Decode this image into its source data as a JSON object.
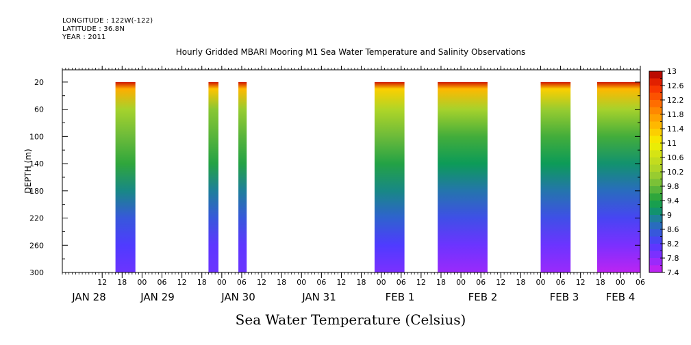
{
  "header": {
    "longitude": "LONGITUDE : 122W(-122)",
    "latitude": "LATITUDE : 36.8N",
    "year": "YEAR : 2011"
  },
  "chart_data": {
    "type": "heatmap",
    "title": "Hourly Gridded MBARI Mooring M1 Sea Water Temperature and Salinity Observations",
    "xlabel_bottom": "Sea Water Temperature (Celsius)",
    "ylabel": "DEPTH (m)",
    "y_axis": {
      "range": [
        300,
        2
      ],
      "reversed": true,
      "tick_labels": [
        "20",
        "60",
        "100",
        "140",
        "180",
        "220",
        "260",
        "300"
      ]
    },
    "x_axis": {
      "range_hours": [
        0,
        174
      ],
      "hour_tick_labels": [
        "12",
        "18",
        "00",
        "06",
        "12",
        "18",
        "00",
        "06",
        "12",
        "18",
        "00",
        "06",
        "12",
        "18",
        "00",
        "06",
        "12",
        "18",
        "00",
        "06",
        "12",
        "18",
        "00",
        "06",
        "12",
        "18",
        "00",
        "06"
      ],
      "day_labels": [
        "JAN 28",
        "JAN 29",
        "JAN 30",
        "JAN 31",
        "FEB  1",
        "FEB  2",
        "FEB  3",
        "FEB  4"
      ]
    },
    "colorbar": {
      "min": 7.4,
      "max": 13,
      "step": 0.2,
      "tick_labels": [
        "13",
        "12.6",
        "12.2",
        "11.8",
        "11.4",
        "11",
        "10.6",
        "10.2",
        "9.8",
        "9.4",
        "9",
        "8.6",
        "8.2",
        "7.8",
        "7.4"
      ]
    },
    "data_blocks": [
      {
        "start_hour": 16,
        "end_hour": 22,
        "profile": [
          [
            20,
            12.8
          ],
          [
            30,
            11.6
          ],
          [
            60,
            10.2
          ],
          [
            100,
            9.8
          ],
          [
            140,
            9.5
          ],
          [
            180,
            9.0
          ],
          [
            220,
            8.5
          ],
          [
            260,
            8.2
          ],
          [
            300,
            8.0
          ]
        ]
      },
      {
        "start_hour": 44,
        "end_hour": 47,
        "profile": [
          [
            20,
            12.8
          ],
          [
            30,
            11.4
          ],
          [
            60,
            10.0
          ],
          [
            100,
            9.7
          ],
          [
            140,
            9.4
          ],
          [
            180,
            8.9
          ],
          [
            220,
            8.5
          ],
          [
            260,
            8.1
          ],
          [
            300,
            8.0
          ]
        ]
      },
      {
        "start_hour": 53,
        "end_hour": 55.5,
        "profile": [
          [
            20,
            12.8
          ],
          [
            30,
            11.5
          ],
          [
            60,
            10.1
          ],
          [
            100,
            9.7
          ],
          [
            140,
            9.4
          ],
          [
            180,
            8.9
          ],
          [
            220,
            8.5
          ],
          [
            260,
            8.1
          ],
          [
            300,
            8.0
          ]
        ]
      },
      {
        "start_hour": 94,
        "end_hour": 103,
        "profile": [
          [
            20,
            12.8
          ],
          [
            30,
            11.3
          ],
          [
            60,
            10.3
          ],
          [
            100,
            9.8
          ],
          [
            140,
            9.4
          ],
          [
            180,
            9.0
          ],
          [
            220,
            8.6
          ],
          [
            260,
            8.2
          ],
          [
            300,
            7.9
          ]
        ]
      },
      {
        "start_hour": 113,
        "end_hour": 128,
        "profile": [
          [
            20,
            12.8
          ],
          [
            30,
            11.5
          ],
          [
            60,
            10.2
          ],
          [
            100,
            9.6
          ],
          [
            140,
            9.2
          ],
          [
            180,
            8.8
          ],
          [
            220,
            8.4
          ],
          [
            260,
            8.0
          ],
          [
            300,
            7.7
          ]
        ]
      },
      {
        "start_hour": 144,
        "end_hour": 153,
        "profile": [
          [
            20,
            12.8
          ],
          [
            30,
            11.3
          ],
          [
            60,
            10.1
          ],
          [
            100,
            9.6
          ],
          [
            140,
            9.2
          ],
          [
            180,
            8.8
          ],
          [
            220,
            8.4
          ],
          [
            260,
            8.0
          ],
          [
            300,
            7.7
          ]
        ]
      },
      {
        "start_hour": 161,
        "end_hour": 178,
        "profile": [
          [
            20,
            12.8
          ],
          [
            30,
            11.5
          ],
          [
            60,
            10.2
          ],
          [
            100,
            9.6
          ],
          [
            140,
            9.1
          ],
          [
            180,
            8.7
          ],
          [
            220,
            8.3
          ],
          [
            260,
            7.9
          ],
          [
            300,
            7.5
          ]
        ]
      }
    ]
  }
}
